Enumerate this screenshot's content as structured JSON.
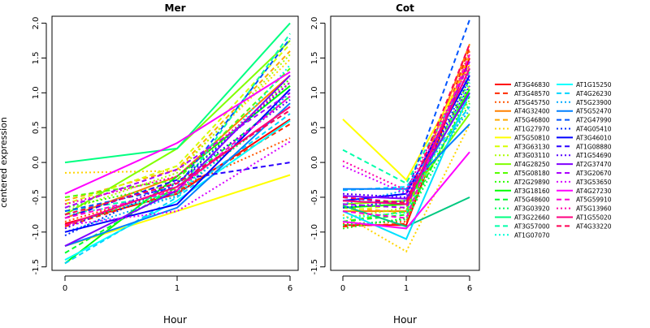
{
  "figure": {
    "ylabel": "centered expression",
    "xlabel": "Hour"
  },
  "chart_data": [
    {
      "type": "line",
      "title": "Mer",
      "xlabel": "Hour",
      "ylabel": "centered expression",
      "x": [
        "0",
        "1",
        "6"
      ],
      "ylim": [
        -1.55,
        2.1
      ],
      "yticks": [
        "-1.5",
        "-1.0",
        "-0.5",
        "0.0",
        "0.5",
        "1.0",
        "1.5",
        "2.0"
      ],
      "series": [
        {
          "name": "AT3G46830",
          "color": "#ff0000",
          "dash": "solid",
          "values": [
            -0.88,
            -0.45,
            0.62
          ]
        },
        {
          "name": "AT3G48570",
          "color": "#ff2a00",
          "dash": "dashed",
          "values": [
            -0.92,
            -0.42,
            0.55
          ]
        },
        {
          "name": "AT5G45750",
          "color": "#ff5500",
          "dash": "dotted",
          "values": [
            -0.85,
            -0.38,
            0.35
          ]
        },
        {
          "name": "AT4G32400",
          "color": "#ff8000",
          "dash": "solid",
          "values": [
            -0.8,
            -0.2,
            1.25
          ]
        },
        {
          "name": "AT5G46800",
          "color": "#ffaa00",
          "dash": "dashed",
          "values": [
            -0.55,
            -0.1,
            1.6
          ]
        },
        {
          "name": "AT1G27970",
          "color": "#ffd500",
          "dash": "dotted",
          "values": [
            -0.15,
            -0.12,
            1.48
          ]
        },
        {
          "name": "AT5G50810",
          "color": "#ffff00",
          "dash": "solid",
          "values": [
            -1.2,
            -0.7,
            -0.18
          ]
        },
        {
          "name": "AT3G63130",
          "color": "#d5ff00",
          "dash": "dashed",
          "values": [
            -0.6,
            -0.05,
            1.7
          ]
        },
        {
          "name": "AT3G03110",
          "color": "#aaff00",
          "dash": "dotted",
          "values": [
            -0.7,
            -0.15,
            1.55
          ]
        },
        {
          "name": "AT4G28250",
          "color": "#80ff00",
          "dash": "solid",
          "values": [
            -0.75,
            0.2,
            1.75
          ]
        },
        {
          "name": "AT5G08180",
          "color": "#55ff00",
          "dash": "dashed",
          "values": [
            -0.5,
            -0.25,
            1.35
          ]
        },
        {
          "name": "AT2G29890",
          "color": "#2aff00",
          "dash": "dotted",
          "values": [
            -0.65,
            -0.3,
            1.2
          ]
        },
        {
          "name": "AT3G18160",
          "color": "#00ff00",
          "dash": "solid",
          "values": [
            -1.45,
            -0.2,
            1.1
          ]
        },
        {
          "name": "AT5G48600",
          "color": "#00ff2a",
          "dash": "dashed",
          "values": [
            -1.3,
            -0.35,
            0.95
          ]
        },
        {
          "name": "AT3G03920",
          "color": "#00ff55",
          "dash": "dotted",
          "values": [
            -0.9,
            -0.4,
            0.8
          ]
        },
        {
          "name": "AT3G22660",
          "color": "#00ff80",
          "dash": "solid",
          "values": [
            0.0,
            0.2,
            2.0
          ]
        },
        {
          "name": "AT3G57000",
          "color": "#00ffaa",
          "dash": "dashed",
          "values": [
            -0.7,
            -0.45,
            1.85
          ]
        },
        {
          "name": "AT1G07070",
          "color": "#00ffd5",
          "dash": "dotted",
          "values": [
            -0.75,
            -0.5,
            1.4
          ]
        },
        {
          "name": "AT1G15250",
          "color": "#00ffff",
          "dash": "solid",
          "values": [
            -1.4,
            -0.55,
            0.6
          ]
        },
        {
          "name": "AT4G26230",
          "color": "#00d5ff",
          "dash": "dashed",
          "values": [
            -1.45,
            -0.5,
            0.7
          ]
        },
        {
          "name": "AT5G23900",
          "color": "#00aaff",
          "dash": "dotted",
          "values": [
            -1.0,
            -0.48,
            1.0
          ]
        },
        {
          "name": "AT5G52470",
          "color": "#0080ff",
          "dash": "solid",
          "values": [
            -1.2,
            -0.65,
            0.85
          ]
        },
        {
          "name": "AT2G47990",
          "color": "#0055ff",
          "dash": "dashed",
          "values": [
            -0.7,
            -0.35,
            1.78
          ]
        },
        {
          "name": "AT4G05410",
          "color": "#002aff",
          "dash": "dotted",
          "values": [
            -1.05,
            -0.3,
            1.15
          ]
        },
        {
          "name": "AT3G46010",
          "color": "#0000ff",
          "dash": "solid",
          "values": [
            -1.0,
            -0.6,
            1.05
          ]
        },
        {
          "name": "AT1G08880",
          "color": "#2a00ff",
          "dash": "dashed",
          "values": [
            -0.8,
            -0.25,
            0.0
          ]
        },
        {
          "name": "AT1G54690",
          "color": "#5500ff",
          "dash": "dotted",
          "values": [
            -0.95,
            -0.28,
            0.9
          ]
        },
        {
          "name": "AT2G37470",
          "color": "#8000ff",
          "dash": "solid",
          "values": [
            -1.2,
            -0.4,
            1.25
          ]
        },
        {
          "name": "AT3G20670",
          "color": "#aa00ff",
          "dash": "dashed",
          "values": [
            -0.65,
            -0.1,
            1.0
          ]
        },
        {
          "name": "AT3G53650",
          "color": "#d500ff",
          "dash": "dotted",
          "values": [
            -0.9,
            -0.7,
            0.3
          ]
        },
        {
          "name": "AT4G27230",
          "color": "#ff00ff",
          "dash": "solid",
          "values": [
            -0.45,
            0.28,
            1.3
          ]
        },
        {
          "name": "AT5G59910",
          "color": "#ff00d5",
          "dash": "dashed",
          "values": [
            -0.8,
            -0.4,
            0.95
          ]
        },
        {
          "name": "AT5G13960",
          "color": "#ff00aa",
          "dash": "dotted",
          "values": [
            -0.6,
            -0.2,
            1.15
          ]
        },
        {
          "name": "AT1G55020",
          "color": "#ff0080",
          "dash": "solid",
          "values": [
            -0.9,
            -0.35,
            0.8
          ]
        },
        {
          "name": "AT4G33220",
          "color": "#ff0055",
          "dash": "dashed",
          "values": [
            -0.75,
            -0.3,
            0.75
          ]
        }
      ]
    },
    {
      "type": "line",
      "title": "Cot",
      "xlabel": "Hour",
      "x": [
        "0",
        "1",
        "6"
      ],
      "ylim": [
        -1.55,
        2.1
      ],
      "yticks": [
        "-1.5",
        "-1.0",
        "-0.5",
        "0.0",
        "0.5",
        "1.0",
        "1.5",
        "2.0"
      ],
      "series": [
        {
          "name": "AT3G46830",
          "color": "#ff0000",
          "dash": "solid",
          "values": [
            -0.9,
            -0.9,
            1.5
          ]
        },
        {
          "name": "AT3G48570",
          "color": "#ff2a00",
          "dash": "dashed",
          "values": [
            -0.92,
            -0.88,
            1.65
          ]
        },
        {
          "name": "AT5G45750",
          "color": "#ff5500",
          "dash": "dotted",
          "values": [
            -0.88,
            -0.85,
            1.6
          ]
        },
        {
          "name": "AT4G32400",
          "color": "#ff8000",
          "dash": "solid",
          "values": [
            -0.7,
            -0.7,
            1.7
          ]
        },
        {
          "name": "AT5G46800",
          "color": "#ffaa00",
          "dash": "dashed",
          "values": [
            -0.65,
            -0.72,
            1.55
          ]
        },
        {
          "name": "AT1G27970",
          "color": "#ffd500",
          "dash": "dotted",
          "values": [
            -0.75,
            -1.28,
            0.55
          ]
        },
        {
          "name": "AT5G50810",
          "color": "#ffff00",
          "dash": "solid",
          "values": [
            0.62,
            -0.25,
            1.4
          ]
        },
        {
          "name": "AT3G63130",
          "color": "#d5ff00",
          "dash": "dashed",
          "values": [
            -0.7,
            -0.6,
            1.1
          ]
        },
        {
          "name": "AT3G03110",
          "color": "#aaff00",
          "dash": "dotted",
          "values": [
            -0.8,
            -0.65,
            0.9
          ]
        },
        {
          "name": "AT4G28250",
          "color": "#80ff00",
          "dash": "solid",
          "values": [
            -0.6,
            -0.55,
            0.7
          ]
        },
        {
          "name": "AT5G08180",
          "color": "#55ff00",
          "dash": "dashed",
          "values": [
            -0.85,
            -0.7,
            1.2
          ]
        },
        {
          "name": "AT2G29890",
          "color": "#2aff00",
          "dash": "dotted",
          "values": [
            -0.95,
            -0.8,
            1.0
          ]
        },
        {
          "name": "AT3G18160",
          "color": "#00ff00",
          "dash": "solid",
          "values": [
            -0.65,
            -0.6,
            1.05
          ]
        },
        {
          "name": "AT5G48600",
          "color": "#00ff2a",
          "dash": "dashed",
          "values": [
            -0.85,
            -0.75,
            0.95
          ]
        },
        {
          "name": "AT3G03920",
          "color": "#00ff55",
          "dash": "dotted",
          "values": [
            -0.9,
            -0.82,
            0.85
          ]
        },
        {
          "name": "AT3G22660",
          "color": "#00c880",
          "dash": "solid",
          "values": [
            -0.62,
            -0.92,
            -0.5
          ]
        },
        {
          "name": "AT3G57000",
          "color": "#00ffaa",
          "dash": "dashed",
          "values": [
            0.18,
            -0.3,
            1.3
          ]
        },
        {
          "name": "AT1G07070",
          "color": "#00ffd5",
          "dash": "dotted",
          "values": [
            -0.8,
            -0.72,
            1.15
          ]
        },
        {
          "name": "AT1G15250",
          "color": "#00e0ff",
          "dash": "solid",
          "values": [
            -0.7,
            -1.1,
            1.0
          ]
        },
        {
          "name": "AT4G26230",
          "color": "#00d5ff",
          "dash": "dashed",
          "values": [
            -0.4,
            -0.35,
            0.8
          ]
        },
        {
          "name": "AT5G23900",
          "color": "#00aaff",
          "dash": "dotted",
          "values": [
            -0.6,
            -0.4,
            0.75
          ]
        },
        {
          "name": "AT5G52470",
          "color": "#0080ff",
          "dash": "solid",
          "values": [
            -0.38,
            -0.38,
            0.55
          ]
        },
        {
          "name": "AT2G47990",
          "color": "#0055ff",
          "dash": "dashed",
          "values": [
            -0.55,
            -0.45,
            2.05
          ]
        },
        {
          "name": "AT4G05410",
          "color": "#002aff",
          "dash": "dotted",
          "values": [
            -0.65,
            -0.55,
            1.2
          ]
        },
        {
          "name": "AT3G46010",
          "color": "#0000ff",
          "dash": "solid",
          "values": [
            -0.55,
            -0.45,
            1.25
          ]
        },
        {
          "name": "AT1G08880",
          "color": "#2a00ff",
          "dash": "dashed",
          "values": [
            -0.5,
            -0.6,
            1.35
          ]
        },
        {
          "name": "AT1G54690",
          "color": "#5500ff",
          "dash": "dotted",
          "values": [
            -0.45,
            -0.5,
            1.1
          ]
        },
        {
          "name": "AT2G37470",
          "color": "#8000ff",
          "dash": "solid",
          "values": [
            -0.48,
            -0.52,
            1.0
          ]
        },
        {
          "name": "AT3G20670",
          "color": "#aa00ff",
          "dash": "dashed",
          "values": [
            -0.6,
            -0.65,
            1.45
          ]
        },
        {
          "name": "AT3G53650",
          "color": "#d500ff",
          "dash": "dotted",
          "values": [
            -0.05,
            -0.45,
            1.3
          ]
        },
        {
          "name": "AT4G27230",
          "color": "#ff00ff",
          "dash": "solid",
          "values": [
            -0.85,
            -0.95,
            0.15
          ]
        },
        {
          "name": "AT5G59910",
          "color": "#ff00d5",
          "dash": "dashed",
          "values": [
            -0.7,
            -0.8,
            1.55
          ]
        },
        {
          "name": "AT5G13960",
          "color": "#ff00aa",
          "dash": "dotted",
          "values": [
            0.02,
            -0.4,
            1.4
          ]
        },
        {
          "name": "AT1G55020",
          "color": "#ff0080",
          "dash": "solid",
          "values": [
            -0.55,
            -0.6,
            1.35
          ]
        },
        {
          "name": "AT4G33220",
          "color": "#ff0055",
          "dash": "dashed",
          "values": [
            -0.5,
            -0.58,
            1.7
          ]
        }
      ]
    }
  ]
}
